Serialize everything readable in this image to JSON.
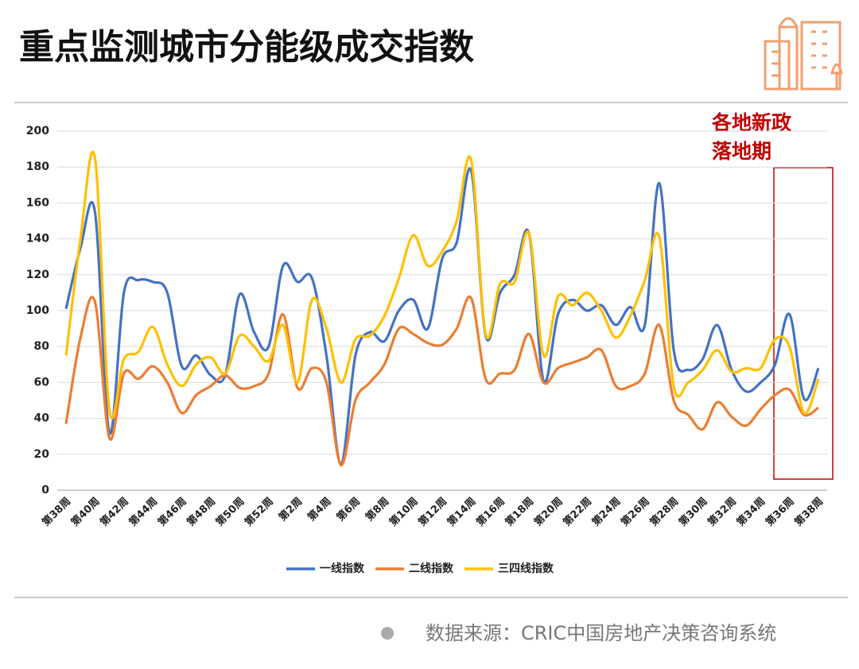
{
  "chart_data": {
    "type": "line",
    "title": "重点监测城市分能级成交指数",
    "annotation": [
      "各地新政",
      "落地期"
    ],
    "source": "数据来源：CRIC中国房地产决策咨询系统",
    "categories": [
      "第38周",
      null,
      "第40周",
      null,
      "第42周",
      null,
      "第44周",
      null,
      "第46周",
      null,
      "第48周",
      null,
      "第50周",
      null,
      "第52周",
      null,
      "第2周",
      null,
      "第4周",
      null,
      "第6周",
      null,
      "第8周",
      null,
      "第10周",
      null,
      "第12周",
      null,
      "第14周",
      null,
      "第16周",
      null,
      "第18周",
      null,
      "第20周",
      null,
      "第22周",
      null,
      "第24周",
      null,
      "第26周",
      null,
      "第28周",
      null,
      "第30周",
      null,
      "第32周",
      null,
      "第34周",
      null,
      "第36周",
      null,
      "第38周"
    ],
    "series": [
      {
        "name": "一线指数",
        "color": "#4472c4",
        "values": [
          101,
          135,
          155,
          32,
          110,
          117,
          116,
          110,
          69,
          75,
          64,
          64,
          109,
          88,
          80,
          125,
          116,
          118,
          75,
          15,
          75,
          88,
          83,
          100,
          106,
          90,
          129,
          138,
          178,
          86,
          110,
          120,
          143,
          61,
          98,
          106,
          100,
          103,
          92,
          102,
          92,
          171,
          78,
          67,
          73,
          92,
          67,
          55,
          60,
          70,
          98,
          51,
          68
        ]
      },
      {
        "name": "二线指数",
        "color": "#ed7d31",
        "values": [
          37,
          85,
          105,
          29,
          65,
          62,
          69,
          60,
          43,
          53,
          58,
          64,
          57,
          58,
          65,
          98,
          57,
          68,
          60,
          14,
          50,
          60,
          70,
          90,
          87,
          82,
          81,
          90,
          107,
          62,
          65,
          67,
          87,
          60,
          68,
          71,
          74,
          78,
          58,
          58,
          65,
          92,
          50,
          42,
          34,
          49,
          41,
          36,
          45,
          53,
          56,
          42,
          46
        ]
      },
      {
        "name": "三四线指数",
        "color": "#ffc000",
        "values": [
          75,
          140,
          185,
          45,
          73,
          77,
          91,
          70,
          58,
          70,
          74,
          65,
          86,
          80,
          72,
          92,
          60,
          106,
          90,
          60,
          84,
          86,
          97,
          118,
          142,
          125,
          133,
          150,
          184,
          87,
          115,
          116,
          143,
          75,
          108,
          103,
          110,
          100,
          85,
          97,
          117,
          141,
          58,
          60,
          67,
          78,
          66,
          68,
          68,
          84,
          80,
          43,
          62
        ]
      }
    ],
    "ylim": [
      0,
      200
    ],
    "yticks": [
      0,
      20,
      40,
      60,
      80,
      100,
      120,
      140,
      160,
      180,
      200
    ],
    "grid": true,
    "legend": "bottom"
  }
}
